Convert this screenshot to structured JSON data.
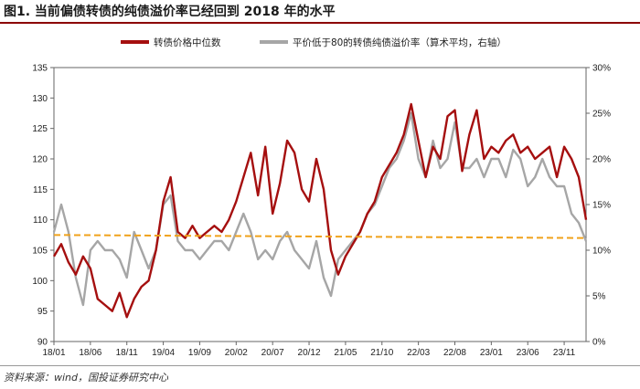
{
  "title": "图1. 当前偏债转债的纯债溢价率已经回到 2018 年的水平",
  "source": "资料来源：wind，国投证券研究中心",
  "colors": {
    "red": "#a50f0f",
    "gray": "#a6a6a6",
    "ref": "#f0a21b",
    "title_rule": "#8b0000"
  },
  "chart_data": {
    "type": "line",
    "title": "图1. 当前偏债转债的纯债溢价率已经回到 2018 年的水平",
    "x_tick_labels": [
      "18/01",
      "18/06",
      "18/11",
      "19/04",
      "19/09",
      "20/02",
      "20/07",
      "20/12",
      "21/05",
      "21/10",
      "22/03",
      "22/08",
      "23/01",
      "23/06",
      "23/11"
    ],
    "x_range": [
      0,
      73
    ],
    "x_unit": "months since 2018-01",
    "left_axis": {
      "min": 90,
      "max": 135,
      "ticks": [
        "90",
        "95",
        "100",
        "105",
        "110",
        "115",
        "120",
        "125",
        "130",
        "135"
      ]
    },
    "right_axis": {
      "min": 0,
      "max": 30,
      "ticks": [
        "0%",
        "5%",
        "10%",
        "15%",
        "20%",
        "25%",
        "30%"
      ]
    },
    "series": [
      {
        "name": "转债价格中位数",
        "axis": "left",
        "color": "#a50f0f",
        "x": [
          0,
          1,
          2,
          3,
          4,
          5,
          6,
          7,
          8,
          9,
          10,
          11,
          12,
          13,
          14,
          15,
          16,
          17,
          18,
          19,
          20,
          21,
          22,
          23,
          24,
          25,
          26,
          27,
          28,
          29,
          30,
          31,
          32,
          33,
          34,
          35,
          36,
          37,
          38,
          39,
          40,
          41,
          42,
          43,
          44,
          45,
          46,
          47,
          48,
          49,
          50,
          51,
          52,
          53,
          54,
          55,
          56,
          57,
          58,
          59,
          60,
          61,
          62,
          63,
          64,
          65,
          66,
          67,
          68,
          69,
          70,
          71,
          72,
          73
        ],
        "values": [
          104,
          106,
          103,
          101,
          104,
          102,
          97,
          96,
          95,
          98,
          94,
          97,
          99,
          100,
          105,
          113,
          117,
          108,
          107,
          109,
          107,
          108,
          109,
          108,
          110,
          113,
          117,
          121,
          114,
          122,
          111,
          116,
          123,
          121,
          115,
          113,
          120,
          115,
          105,
          101,
          104,
          106,
          108,
          111,
          113,
          117,
          119,
          121,
          124,
          129,
          123,
          117,
          122,
          120,
          127,
          128,
          118,
          124,
          128,
          120,
          122,
          121,
          123,
          124,
          121,
          122,
          120,
          121,
          122,
          117,
          122,
          120,
          117,
          110
        ]
      },
      {
        "name": "平价低于80的转债纯债溢价率（算术平均，右轴）",
        "axis": "right",
        "color": "#a6a6a6",
        "x": [
          0,
          1,
          2,
          3,
          4,
          5,
          6,
          7,
          8,
          9,
          10,
          11,
          12,
          13,
          14,
          15,
          16,
          17,
          18,
          19,
          20,
          21,
          22,
          23,
          24,
          25,
          26,
          27,
          28,
          29,
          30,
          31,
          32,
          33,
          34,
          35,
          36,
          37,
          38,
          39,
          40,
          41,
          42,
          43,
          44,
          45,
          46,
          47,
          48,
          49,
          50,
          51,
          52,
          53,
          54,
          55,
          56,
          57,
          58,
          59,
          60,
          61,
          62,
          63,
          64,
          65,
          66,
          67,
          68,
          69,
          70,
          71,
          72,
          73
        ],
        "values": [
          12,
          15,
          12,
          7,
          4,
          10,
          11,
          10,
          10,
          9,
          7,
          12,
          10,
          8,
          10,
          15,
          16,
          11,
          10,
          10,
          9,
          10,
          11,
          11,
          10,
          12,
          14,
          12,
          9,
          10,
          9,
          11,
          12,
          10,
          9,
          8,
          11,
          7,
          5,
          9,
          10,
          11,
          12,
          14,
          15,
          17,
          19,
          20,
          22,
          25,
          20,
          18,
          22,
          19,
          20,
          24,
          19,
          19,
          20,
          18,
          20,
          20,
          18,
          21,
          20,
          17,
          18,
          20,
          18,
          17,
          17,
          14,
          13,
          11
        ]
      }
    ],
    "reference_line": {
      "axis": "left",
      "from": 107.5,
      "to": 107.0,
      "style": "dashed"
    }
  }
}
